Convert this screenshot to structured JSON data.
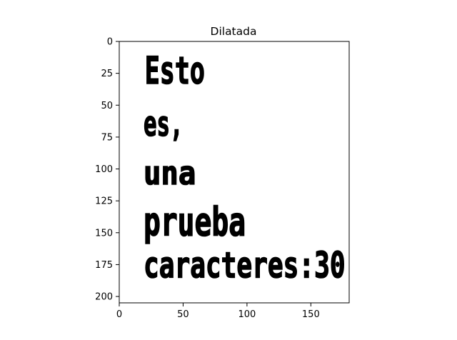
{
  "chart_data": {
    "type": "image",
    "title": "Dilatada",
    "xlim": [
      0,
      180
    ],
    "ylim": [
      205,
      0
    ],
    "x_ticks": [
      0,
      50,
      100,
      150
    ],
    "y_ticks": [
      0,
      25,
      50,
      75,
      100,
      125,
      150,
      175,
      200
    ],
    "x_tick_labels": [
      "0",
      "50",
      "100",
      "150"
    ],
    "y_tick_labels": [
      "0",
      "25",
      "50",
      "75",
      "100",
      "125",
      "150",
      "175",
      "200"
    ],
    "colormap": "binary",
    "grid": false,
    "lines": [
      {
        "text": "Esto",
        "x_start": 20,
        "x_end": 67,
        "y_top": 10,
        "y_bottom": 33
      },
      {
        "text": "es,",
        "x_start": 19,
        "x_end": 50,
        "y_top": 53,
        "y_bottom": 74
      },
      {
        "text": "una",
        "x_start": 19,
        "x_end": 60,
        "y_top": 92,
        "y_bottom": 112
      },
      {
        "text": "prueba",
        "x_start": 19,
        "x_end": 99,
        "y_top": 128,
        "y_bottom": 152
      },
      {
        "text": "caracteres:30",
        "x_start": 19,
        "x_end": 177,
        "y_top": 163,
        "y_bottom": 185
      }
    ]
  }
}
